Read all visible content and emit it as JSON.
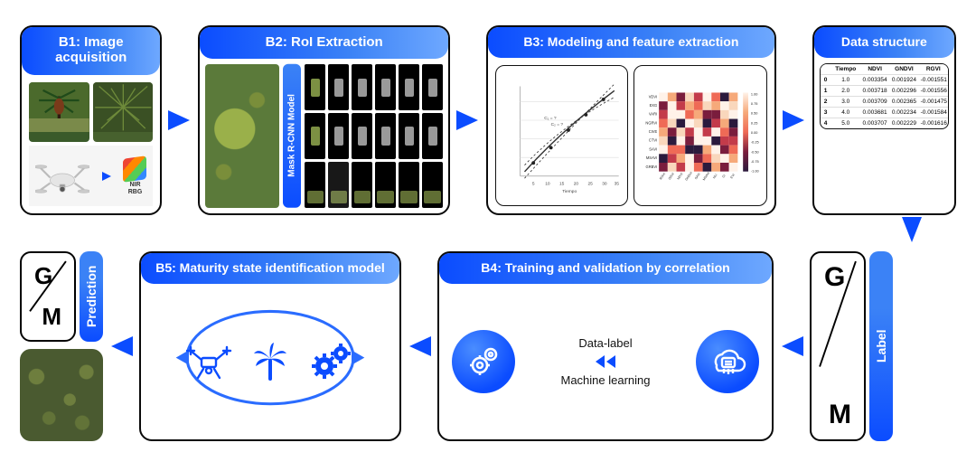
{
  "arrow_color": "#0b4cff",
  "accent_gradient": [
    "#0b4cff",
    "#3b82f6",
    "#6ea8ff"
  ],
  "b1": {
    "title": "B1: Image acquisition",
    "nir_label_1": "NIR",
    "nir_label_2": "RBG"
  },
  "b2": {
    "title": "B2: RoI Extraction",
    "mask_label": "Mask R-CNN Model",
    "grid": {
      "cols": 6,
      "rows": 3,
      "cell_bg": "#000000",
      "accent_green": "#8aa04a",
      "accent_gray": "#aaaaaa"
    }
  },
  "b3": {
    "title": "B3: Modeling and feature extraction",
    "scatter": {
      "xlim": [
        0,
        35
      ],
      "ylim": [
        0,
        35
      ],
      "xticks": [
        5,
        10,
        15,
        20,
        25,
        30,
        35
      ],
      "xlabel": "Tiempo",
      "points_n": 5,
      "line_color": "#222222",
      "point_color": "#1a1a1a"
    },
    "heatmap": {
      "rows": [
        "VDVI",
        "EXG",
        "VARI",
        "NGRVI",
        "CIVE",
        "CTVI",
        "SAVI",
        "MSAVI",
        "GRBVI"
      ],
      "cols": [
        "RGVI",
        "GDVI",
        "NDVI",
        "GNDVI",
        "SAVI",
        "MSAVI",
        "NLI",
        "CI",
        "EVI"
      ],
      "colorbar": {
        "min": -1.0,
        "max": 1.0,
        "ticks": [
          1.0,
          0.75,
          0.5,
          0.25,
          0.0,
          -0.25,
          -0.5,
          -0.75,
          -1.0
        ]
      },
      "palette": [
        "#2b1a3d",
        "#7a1d3d",
        "#c33b4a",
        "#ef6a56",
        "#f6a97a",
        "#f9d7bc",
        "#fff2e9"
      ]
    }
  },
  "data_structure": {
    "title": "Data structure",
    "columns": [
      "",
      "Tiempo",
      "NDVI",
      "GNDVI",
      "RGVI"
    ],
    "rows": [
      [
        "0",
        "1.0",
        "0.003354",
        "0.001924",
        "-0.001551"
      ],
      [
        "1",
        "2.0",
        "0.003718",
        "0.002296",
        "-0.001556"
      ],
      [
        "2",
        "3.0",
        "0.003709",
        "0.002365",
        "-0.001475"
      ],
      [
        "3",
        "4.0",
        "0.003681",
        "0.002234",
        "-0.001584"
      ],
      [
        "4",
        "5.0",
        "0.003707",
        "0.002229",
        "-0.001616"
      ]
    ]
  },
  "b4": {
    "title": "B4: Training and validation by correlation",
    "mid_top": "Data-label",
    "mid_bottom": "Machine learning"
  },
  "b5": {
    "title": "B5: Maturity state identification model"
  },
  "labels": {
    "prediction": "Prediction",
    "label": "Label",
    "g": "G",
    "m": "M"
  }
}
